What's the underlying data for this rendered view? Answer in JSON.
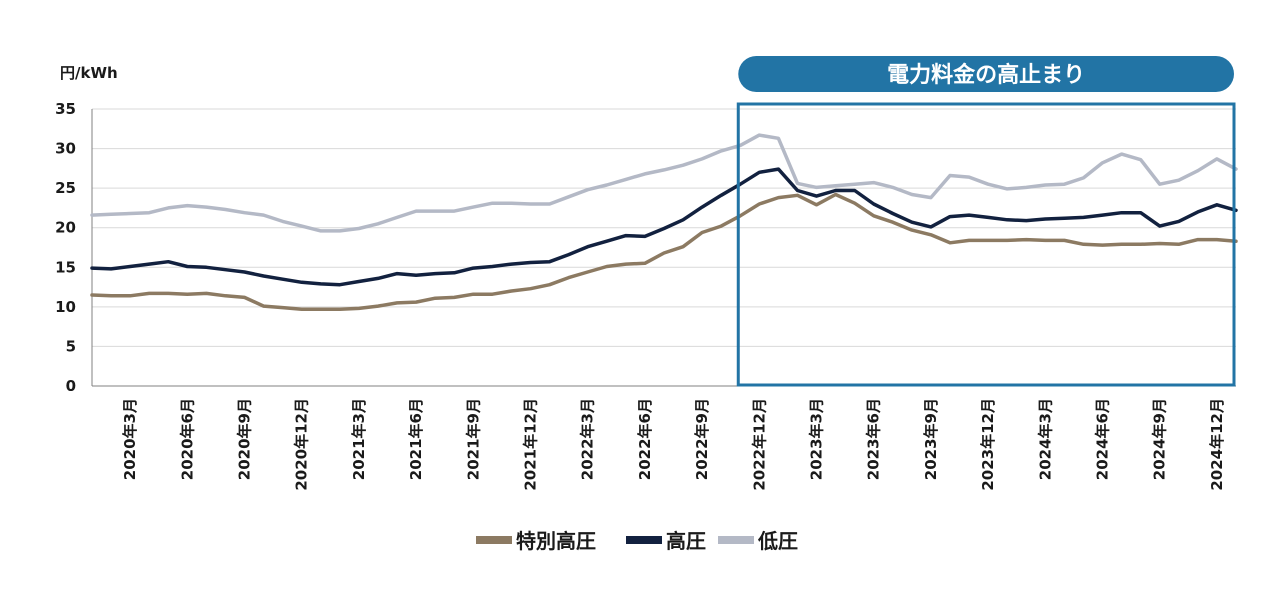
{
  "chart_data": {
    "type": "line",
    "y_unit": "円/kWh",
    "ylim": [
      0,
      35
    ],
    "y_ticks": [
      "0",
      "5",
      "10",
      "15",
      "20",
      "25",
      "30",
      "35"
    ],
    "x_tick_labels": [
      "2020年3月",
      "2020年6月",
      "2020年9月",
      "2020年12月",
      "2021年3月",
      "2021年6月",
      "2021年9月",
      "2021年12月",
      "2022年3月",
      "2022年6月",
      "2022年9月",
      "2022年12月",
      "2023年3月",
      "2023年6月",
      "2023年9月",
      "2023年12月",
      "2024年3月",
      "2024年6月",
      "2024年9月",
      "2024年12月"
    ],
    "x": [
      "2020年1月",
      "2020年2月",
      "2020年3月",
      "2020年4月",
      "2020年5月",
      "2020年6月",
      "2020年7月",
      "2020年8月",
      "2020年9月",
      "2020年10月",
      "2020年11月",
      "2020年12月",
      "2021年1月",
      "2021年2月",
      "2021年3月",
      "2021年4月",
      "2021年5月",
      "2021年6月",
      "2021年7月",
      "2021年8月",
      "2021年9月",
      "2021年10月",
      "2021年11月",
      "2021年12月",
      "2022年1月",
      "2022年2月",
      "2022年3月",
      "2022年4月",
      "2022年5月",
      "2022年6月",
      "2022年7月",
      "2022年8月",
      "2022年9月",
      "2022年10月",
      "2022年11月",
      "2022年12月",
      "2023年1月",
      "2023年2月",
      "2023年3月",
      "2023年4月",
      "2023年5月",
      "2023年6月",
      "2023年7月",
      "2023年8月",
      "2023年9月",
      "2023年10月",
      "2023年11月",
      "2023年12月",
      "2024年1月",
      "2024年2月",
      "2024年3月",
      "2024年4月",
      "2024年5月",
      "2024年6月",
      "2024年7月",
      "2024年8月",
      "2024年9月",
      "2024年10月",
      "2024年11月",
      "2024年12月",
      "2025年1月"
    ],
    "series": [
      {
        "name": "特別高圧",
        "color": "#8c7a62",
        "values": [
          11.5,
          11.4,
          11.4,
          11.7,
          11.7,
          11.6,
          11.7,
          11.4,
          11.2,
          10.1,
          9.9,
          9.7,
          9.7,
          9.7,
          9.8,
          10.1,
          10.5,
          10.6,
          11.1,
          11.2,
          11.6,
          11.6,
          12.0,
          12.3,
          12.8,
          13.7,
          14.4,
          15.1,
          15.4,
          15.5,
          16.8,
          17.6,
          19.4,
          20.2,
          21.5,
          23.0,
          23.8,
          24.1,
          22.9,
          24.2,
          23.1,
          21.5,
          20.7,
          19.7,
          19.1,
          18.1,
          18.4,
          18.4,
          18.4,
          18.5,
          18.4,
          18.4,
          17.9,
          17.8,
          17.9,
          17.9,
          18.0,
          17.9,
          18.5,
          18.5,
          18.3
        ]
      },
      {
        "name": "高圧",
        "color": "#12213f",
        "values": [
          14.9,
          14.8,
          15.1,
          15.4,
          15.7,
          15.1,
          15.0,
          14.7,
          14.4,
          13.9,
          13.5,
          13.1,
          12.9,
          12.8,
          13.2,
          13.6,
          14.2,
          14.0,
          14.2,
          14.3,
          14.9,
          15.1,
          15.4,
          15.6,
          15.7,
          16.6,
          17.6,
          18.3,
          19.0,
          18.9,
          19.9,
          21.0,
          22.6,
          24.1,
          25.5,
          27.0,
          27.4,
          24.7,
          24.0,
          24.7,
          24.7,
          23.0,
          21.8,
          20.7,
          20.1,
          21.4,
          21.6,
          21.3,
          21.0,
          20.9,
          21.1,
          21.2,
          21.3,
          21.6,
          21.9,
          21.9,
          20.2,
          20.8,
          22.0,
          22.9,
          22.2
        ]
      },
      {
        "name": "低圧",
        "color": "#b4b9c6",
        "values": [
          21.6,
          21.7,
          21.8,
          21.9,
          22.5,
          22.8,
          22.6,
          22.3,
          21.9,
          21.6,
          20.8,
          20.2,
          19.6,
          19.6,
          19.9,
          20.5,
          21.3,
          22.1,
          22.1,
          22.1,
          22.6,
          23.1,
          23.1,
          23.0,
          23.0,
          23.9,
          24.8,
          25.4,
          26.1,
          26.8,
          27.3,
          27.9,
          28.7,
          29.7,
          30.4,
          31.7,
          31.3,
          25.6,
          25.1,
          25.3,
          25.5,
          25.7,
          25.1,
          24.2,
          23.8,
          26.6,
          26.4,
          25.5,
          24.9,
          25.1,
          25.4,
          25.5,
          26.3,
          28.2,
          29.3,
          28.6,
          25.5,
          26.0,
          27.2,
          28.7,
          27.4
        ]
      }
    ],
    "highlight": {
      "label": "電力料金の高止まり",
      "from": "2022年11月",
      "to": "2025年1月",
      "color": "#2274a5"
    },
    "grid": "horizontal",
    "legend_position": "bottom-center"
  }
}
